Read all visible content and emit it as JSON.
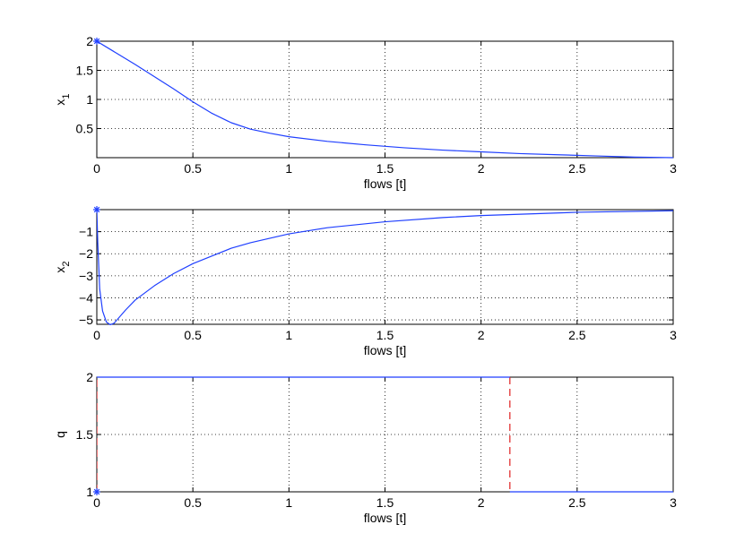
{
  "chart_data": [
    {
      "type": "line",
      "xlabel": "flows [t]",
      "ylabel_main": "x",
      "ylabel_sub": "1",
      "xlim": [
        0,
        3
      ],
      "ylim": [
        0,
        2
      ],
      "xticks": [
        "0",
        "0.5",
        "1",
        "1.5",
        "2",
        "2.5",
        "3"
      ],
      "yticks": [
        "0.5",
        "1",
        "1.5",
        "2"
      ],
      "grid": true,
      "series": [
        {
          "color": "#1f3fff",
          "x": [
            0,
            0.1,
            0.2,
            0.3,
            0.4,
            0.5,
            0.6,
            0.7,
            0.8,
            0.9,
            1.0,
            1.2,
            1.4,
            1.6,
            1.8,
            2.0,
            2.2,
            2.4,
            2.6,
            2.8,
            3.0
          ],
          "y": [
            2.0,
            1.8,
            1.6,
            1.39,
            1.18,
            0.96,
            0.76,
            0.6,
            0.49,
            0.42,
            0.36,
            0.28,
            0.22,
            0.17,
            0.13,
            0.1,
            0.07,
            0.05,
            0.03,
            0.01,
            0.0
          ]
        }
      ],
      "markers": [
        {
          "x": 0,
          "y": 2,
          "shape": "star"
        }
      ]
    },
    {
      "type": "line",
      "xlabel": "flows [t]",
      "ylabel_main": "x",
      "ylabel_sub": "2",
      "xlim": [
        0,
        3
      ],
      "ylim": [
        -5.2,
        0
      ],
      "xticks": [
        "0",
        "0.5",
        "1",
        "1.5",
        "2",
        "2.5",
        "3"
      ],
      "yticks": [
        "-5",
        "-4",
        "-3",
        "-2",
        "-1"
      ],
      "grid": true,
      "series": [
        {
          "color": "#1f3fff",
          "x": [
            0,
            0.005,
            0.015,
            0.03,
            0.05,
            0.07,
            0.09,
            0.15,
            0.2,
            0.3,
            0.4,
            0.5,
            0.6,
            0.7,
            0.8,
            1.0,
            1.2,
            1.5,
            1.8,
            2.0,
            2.5,
            3.0
          ],
          "y": [
            0,
            -1.5,
            -3.6,
            -4.6,
            -5.1,
            -5.22,
            -5.15,
            -4.55,
            -4.1,
            -3.45,
            -2.9,
            -2.45,
            -2.1,
            -1.75,
            -1.5,
            -1.1,
            -0.82,
            -0.55,
            -0.36,
            -0.27,
            -0.12,
            -0.05
          ]
        }
      ],
      "markers": [
        {
          "x": 0,
          "y": 0,
          "shape": "star"
        }
      ]
    },
    {
      "type": "line",
      "xlabel": "flows [t]",
      "ylabel": "q",
      "xlim": [
        0,
        3
      ],
      "ylim": [
        1,
        2
      ],
      "xticks": [
        "0",
        "0.5",
        "1",
        "1.5",
        "2",
        "2.5",
        "3"
      ],
      "yticks": [
        "1",
        "1.5",
        "2"
      ],
      "grid": true,
      "series": [
        {
          "color": "#1f3fff",
          "style": "solid",
          "x": [
            0,
            2.15
          ],
          "y": [
            2,
            2
          ]
        },
        {
          "color": "#1f3fff",
          "style": "solid",
          "x": [
            2.15,
            3.0
          ],
          "y": [
            1,
            1
          ]
        }
      ],
      "jumps": [
        {
          "color": "#e02020",
          "style": "dashed",
          "x": [
            0,
            0
          ],
          "y": [
            1,
            2
          ]
        },
        {
          "color": "#e02020",
          "style": "dashed",
          "x": [
            2.15,
            2.15
          ],
          "y": [
            2,
            1
          ]
        }
      ],
      "markers": [
        {
          "x": 0,
          "y": 1,
          "shape": "star"
        }
      ]
    }
  ]
}
